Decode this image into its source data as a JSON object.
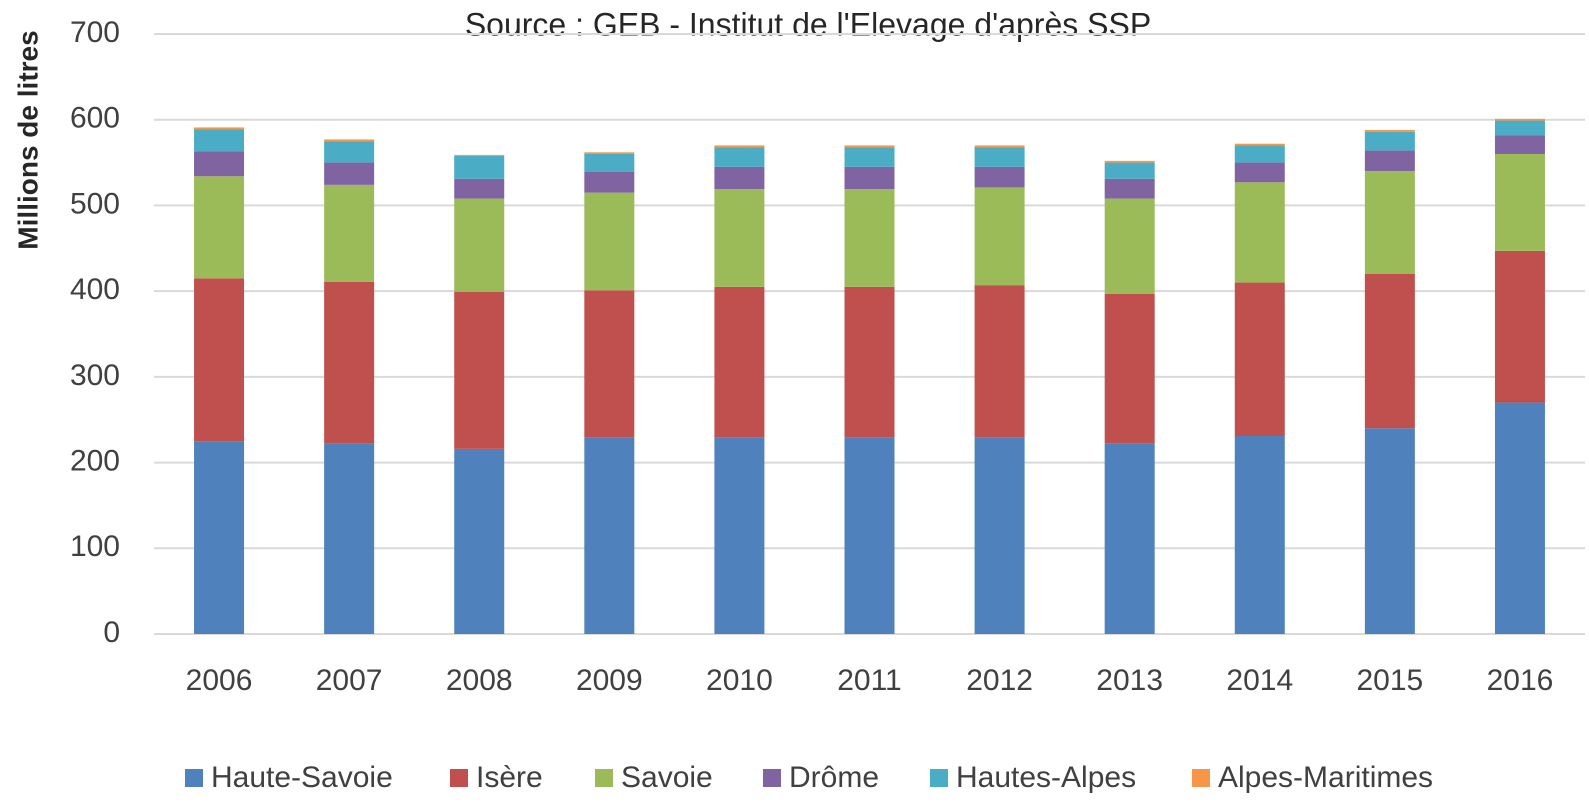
{
  "chart_data": {
    "type": "stacked_bar",
    "title": "Source : GEB - Institut de l'Elevage d'après SSP",
    "y_label": "Millions de litres",
    "categories": [
      "2006",
      "2007",
      "2008",
      "2009",
      "2010",
      "2011",
      "2012",
      "2013",
      "2014",
      "2015",
      "2016"
    ],
    "series": [
      {
        "name": "Haute-Savoie",
        "color": "#4f81bd",
        "values": [
          225,
          222,
          216,
          229,
          229,
          229,
          229,
          222,
          231,
          240,
          270
        ]
      },
      {
        "name": "Isère",
        "color": "#c0504d",
        "values": [
          190,
          189,
          183,
          172,
          176,
          176,
          178,
          175,
          179,
          180,
          177
        ]
      },
      {
        "name": "Savoie",
        "color": "#9bbb59",
        "values": [
          119,
          113,
          109,
          114,
          114,
          114,
          114,
          111,
          117,
          120,
          113
        ]
      },
      {
        "name": "Drôme",
        "color": "#8064a2",
        "values": [
          29,
          26,
          23,
          24,
          26,
          26,
          24,
          23,
          23,
          24,
          22
        ]
      },
      {
        "name": "Hautes-Alpes",
        "color": "#4bacc6",
        "values": [
          26,
          25,
          27,
          21,
          23,
          23,
          23,
          19,
          20,
          22,
          17
        ]
      },
      {
        "name": "Alpes-Maritimes",
        "color": "#f79646",
        "values": [
          2,
          2,
          1,
          2,
          2,
          2,
          2,
          2,
          2,
          2,
          2
        ]
      }
    ],
    "ylim": [
      0,
      700
    ],
    "yticks": [
      0,
      100,
      200,
      300,
      400,
      500,
      600,
      700
    ],
    "grid": true,
    "legend": "bottom"
  }
}
